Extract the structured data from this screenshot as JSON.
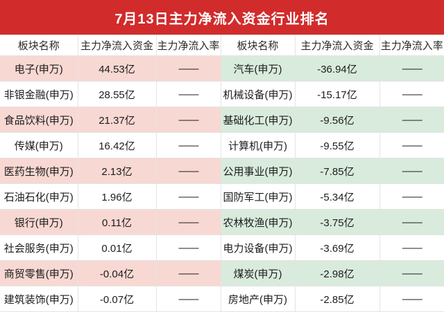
{
  "title": "7月13日主力净流入资金行业排名",
  "colors": {
    "header_bar": "#d22b2b",
    "title_text": "#ffffff",
    "row_pink": "#f8d8d3",
    "row_green": "#d9ebdc",
    "grid_border": "#e4e4e4",
    "cell_text": "#1c1c1c"
  },
  "chart_data": {
    "type": "table",
    "title": "7月13日主力净流入资金行业排名",
    "columns": [
      "板块名称",
      "主力净流入资金",
      "主力净流入率",
      "板块名称",
      "主力净流入资金",
      "主力净流入率"
    ],
    "rows": [
      [
        "电子(申万)",
        "44.53亿",
        "——",
        "汽车(申万)",
        "-36.94亿",
        "——"
      ],
      [
        "非银金融(申万)",
        "28.55亿",
        "——",
        "机械设备(申万)",
        "-15.17亿",
        "——"
      ],
      [
        "食品饮料(申万)",
        "21.37亿",
        "——",
        "基础化工(申万)",
        "-9.56亿",
        "——"
      ],
      [
        "传媒(申万)",
        "16.42亿",
        "——",
        "计算机(申万)",
        "-9.55亿",
        "——"
      ],
      [
        "医药生物(申万)",
        "2.13亿",
        "——",
        "公用事业(申万)",
        "-7.85亿",
        "——"
      ],
      [
        "石油石化(申万)",
        "1.96亿",
        "——",
        "国防军工(申万)",
        "-5.34亿",
        "——"
      ],
      [
        "银行(申万)",
        "0.11亿",
        "——",
        "农林牧渔(申万)",
        "-3.75亿",
        "——"
      ],
      [
        "社会服务(申万)",
        "0.01亿",
        "——",
        "电力设备(申万)",
        "-3.69亿",
        "——"
      ],
      [
        "商贸零售(申万)",
        "-0.04亿",
        "——",
        "煤炭(申万)",
        "-2.98亿",
        "——"
      ],
      [
        "建筑装饰(申万)",
        "-0.07亿",
        "——",
        "房地产(申万)",
        "-2.85亿",
        "——"
      ]
    ],
    "layout": {
      "stripe_left_color_name": "pink",
      "stripe_right_color_name": "green",
      "striped_row_indexes": [
        0,
        2,
        4,
        6,
        8
      ],
      "grid": "on"
    }
  }
}
